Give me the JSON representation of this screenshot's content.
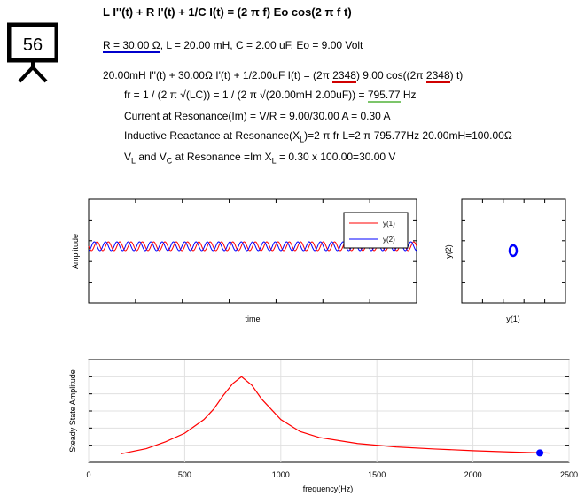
{
  "badge": {
    "number": "56",
    "icon": "presentation-board-icon"
  },
  "title": "L I''(t) + R I'(t) + 1/C I(t) = (2 π f) Eo cos(2 π f t)",
  "params": {
    "r": "R = 30.00 Ω",
    "rest": ", L = 20.00 mH, C = 2.00 uF, Eo = 9.00 Volt"
  },
  "equation": {
    "a": "20.00mH I''(t) + 30.00Ω I'(t) + 1/2.00uF I(t) = (2π ",
    "f1": "2348",
    "b": ") 9.00 cos((2π ",
    "f2": "2348",
    "c": ") t)"
  },
  "resonance": {
    "fr_a": "fr = 1 / (2 π √(LC)) = 1 / (2 π √(20.00mH 2.00uF)) = ",
    "fr_val": "795.77",
    "fr_unit": " Hz",
    "current": "Current at Resonance(Im) = V/R = 9.00/30.00 A = 0.30 A",
    "xl_a": "Inductive Reactance at Resonance(X",
    "xl_sub": "L",
    "xl_b": ")=2 π fr L=2 π 795.77Hz 20.00mH=100.00Ω",
    "v_a": "V",
    "v_sub1": "L",
    "v_b": " and V",
    "v_sub2": "C",
    "v_c": " at Resonance =Im X",
    "v_sub3": "L",
    "v_d": " = 0.30 x 100.00=30.00 V"
  },
  "time_plot": {
    "ylabel": "Amplitude",
    "xlabel": "time",
    "legend": [
      "y(1)",
      "y(2)"
    ],
    "series_colors": [
      "#ff0000",
      "#0000ff"
    ]
  },
  "phase_plot": {
    "xlabel": "y(1)",
    "ylabel": "y(2)"
  },
  "chart_data": {
    "type": "line",
    "xlabel": "frequency(Hz)",
    "ylabel": "Steady State Amplitude",
    "xlim": [
      0,
      2500
    ],
    "xticks": [
      0,
      500,
      1000,
      1500,
      2000,
      2500
    ],
    "series": [
      {
        "x": [
          170,
          300,
          400,
          500,
          600,
          650,
          700,
          750,
          795.77,
          850,
          900,
          1000,
          1100,
          1200,
          1400,
          1600,
          1800,
          2000,
          2200,
          2400
        ],
        "y": [
          0.05,
          0.08,
          0.12,
          0.17,
          0.25,
          0.31,
          0.39,
          0.46,
          0.5,
          0.45,
          0.37,
          0.25,
          0.18,
          0.145,
          0.11,
          0.09,
          0.078,
          0.068,
          0.06,
          0.054
        ]
      }
    ],
    "marker": {
      "x": 2348,
      "y": 0.055
    },
    "line_color": "#ff0000",
    "marker_color": "#0000ff"
  }
}
